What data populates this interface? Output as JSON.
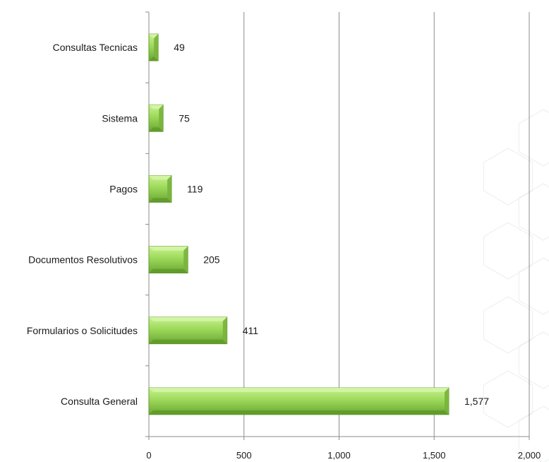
{
  "chart_data": {
    "type": "bar",
    "orientation": "horizontal",
    "title": "",
    "xlabel": "",
    "ylabel": "",
    "categories": [
      "Consultas Tecnicas",
      "Sistema",
      "Pagos",
      "Documentos Resolutivos",
      "Formularios o Solicitudes",
      "Consulta General"
    ],
    "values": [
      49,
      75,
      119,
      205,
      411,
      1577
    ],
    "value_labels": [
      "49",
      "75",
      "119",
      "205",
      "411",
      "1,577"
    ],
    "xlim": [
      0,
      2000
    ],
    "xticks": [
      0,
      500,
      1000,
      1500,
      2000
    ],
    "xtick_labels": [
      "0",
      "500",
      "1,000",
      "1,500",
      "2,000"
    ],
    "grid": "vertical",
    "legend": "none",
    "bar_color": "#92d050",
    "bar_highlight": "#c6f08a",
    "bar_shadow": "#5f9a2a"
  }
}
